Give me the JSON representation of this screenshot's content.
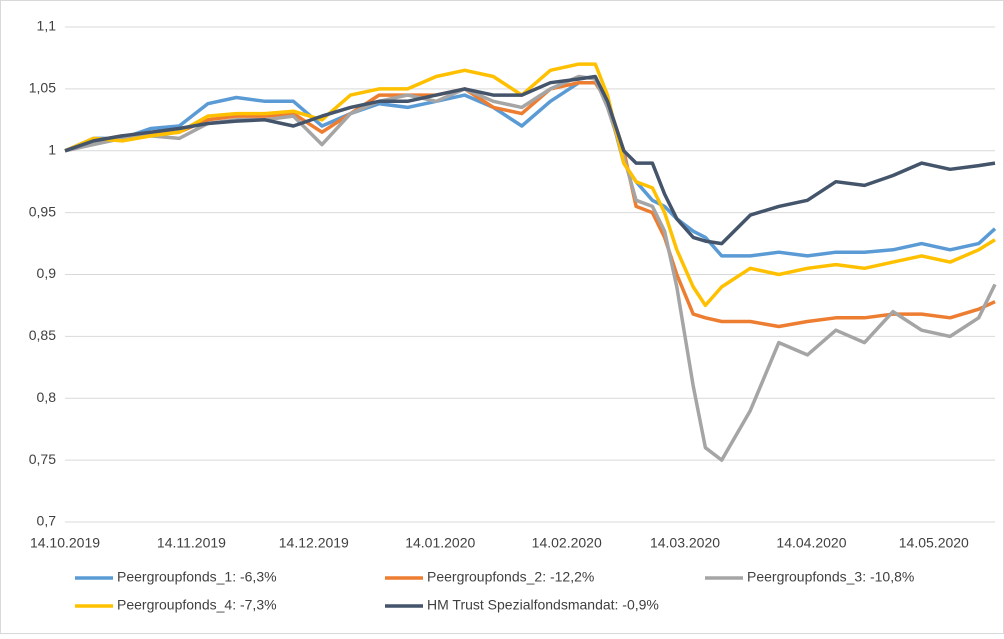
{
  "chart_data": {
    "type": "line",
    "x": [
      "14.10.2019",
      "21.10.2019",
      "28.10.2019",
      "04.11.2019",
      "11.11.2019",
      "18.11.2019",
      "25.11.2019",
      "02.12.2019",
      "09.12.2019",
      "16.12.2019",
      "23.12.2019",
      "30.12.2019",
      "06.01.2020",
      "13.01.2020",
      "20.01.2020",
      "27.01.2020",
      "03.02.2020",
      "10.02.2020",
      "17.02.2020",
      "21.02.2020",
      "24.02.2020",
      "28.02.2020",
      "02.03.2020",
      "06.03.2020",
      "09.03.2020",
      "12.03.2020",
      "16.03.2020",
      "19.03.2020",
      "23.03.2020",
      "30.03.2020",
      "06.04.2020",
      "13.04.2020",
      "20.04.2020",
      "27.04.2020",
      "04.05.2020",
      "11.05.2020",
      "18.05.2020",
      "25.05.2020",
      "29.05.2020"
    ],
    "xlim": [
      "14.10.2019",
      "29.05.2020"
    ],
    "xticks": [
      "14.10.2019",
      "14.11.2019",
      "14.12.2019",
      "14.01.2020",
      "14.02.2020",
      "14.03.2020",
      "14.04.2020",
      "14.05.2020"
    ],
    "ylim": [
      0.7,
      1.1
    ],
    "yticks": [
      {
        "value": 0.7,
        "label": "0,7"
      },
      {
        "value": 0.75,
        "label": "0,75"
      },
      {
        "value": 0.8,
        "label": "0,8"
      },
      {
        "value": 0.85,
        "label": "0,85"
      },
      {
        "value": 0.9,
        "label": "0,9"
      },
      {
        "value": 0.95,
        "label": "0,95"
      },
      1,
      {
        "value": 1.05,
        "label": "1,05"
      },
      {
        "value": 1.1,
        "label": "1,1"
      }
    ],
    "grid": true,
    "series": [
      {
        "name": "Peergroupfonds_1: -6,3%",
        "color": "#5b9bd5",
        "values": [
          1.0,
          1.01,
          1.01,
          1.018,
          1.02,
          1.038,
          1.043,
          1.04,
          1.04,
          1.02,
          1.03,
          1.038,
          1.035,
          1.04,
          1.045,
          1.035,
          1.02,
          1.04,
          1.055,
          1.055,
          1.04,
          0.99,
          0.975,
          0.96,
          0.955,
          0.945,
          0.935,
          0.93,
          0.915,
          0.915,
          0.918,
          0.915,
          0.918,
          0.918,
          0.92,
          0.925,
          0.92,
          0.925,
          0.937
        ]
      },
      {
        "name": "Peergroupfonds_2: -12,2%",
        "color": "#ed7d31",
        "values": [
          1.0,
          1.008,
          1.012,
          1.013,
          1.015,
          1.025,
          1.028,
          1.028,
          1.03,
          1.015,
          1.03,
          1.045,
          1.045,
          1.045,
          1.05,
          1.035,
          1.03,
          1.05,
          1.055,
          1.055,
          1.04,
          1.0,
          0.955,
          0.95,
          0.93,
          0.9,
          0.868,
          0.865,
          0.862,
          0.862,
          0.858,
          0.862,
          0.865,
          0.865,
          0.868,
          0.868,
          0.865,
          0.872,
          0.878
        ]
      },
      {
        "name": "Peergroupfonds_3: -10,8%",
        "color": "#a5a5a5",
        "values": [
          1.0,
          1.005,
          1.01,
          1.012,
          1.01,
          1.022,
          1.025,
          1.025,
          1.028,
          1.005,
          1.03,
          1.04,
          1.045,
          1.04,
          1.05,
          1.04,
          1.035,
          1.05,
          1.06,
          1.058,
          1.035,
          0.995,
          0.96,
          0.955,
          0.935,
          0.89,
          0.81,
          0.76,
          0.75,
          0.79,
          0.845,
          0.835,
          0.855,
          0.845,
          0.87,
          0.855,
          0.85,
          0.865,
          0.892
        ]
      },
      {
        "name": "Peergroupfonds_4: -7,3%",
        "color": "#ffc000",
        "values": [
          1.0,
          1.01,
          1.008,
          1.012,
          1.015,
          1.028,
          1.03,
          1.03,
          1.032,
          1.025,
          1.045,
          1.05,
          1.05,
          1.06,
          1.065,
          1.06,
          1.045,
          1.065,
          1.07,
          1.07,
          1.045,
          0.99,
          0.975,
          0.97,
          0.95,
          0.92,
          0.89,
          0.875,
          0.89,
          0.905,
          0.9,
          0.905,
          0.908,
          0.905,
          0.91,
          0.915,
          0.91,
          0.92,
          0.928
        ]
      },
      {
        "name": "HM Trust Spezialfondsmandat: -0,9%",
        "color": "#44546a",
        "values": [
          1.0,
          1.008,
          1.012,
          1.015,
          1.018,
          1.022,
          1.024,
          1.025,
          1.02,
          1.028,
          1.035,
          1.04,
          1.04,
          1.045,
          1.05,
          1.045,
          1.045,
          1.055,
          1.058,
          1.06,
          1.04,
          1.0,
          0.99,
          0.99,
          0.965,
          0.945,
          0.93,
          0.927,
          0.925,
          0.948,
          0.955,
          0.96,
          0.975,
          0.972,
          0.98,
          0.99,
          0.985,
          0.988,
          0.99
        ]
      }
    ]
  }
}
